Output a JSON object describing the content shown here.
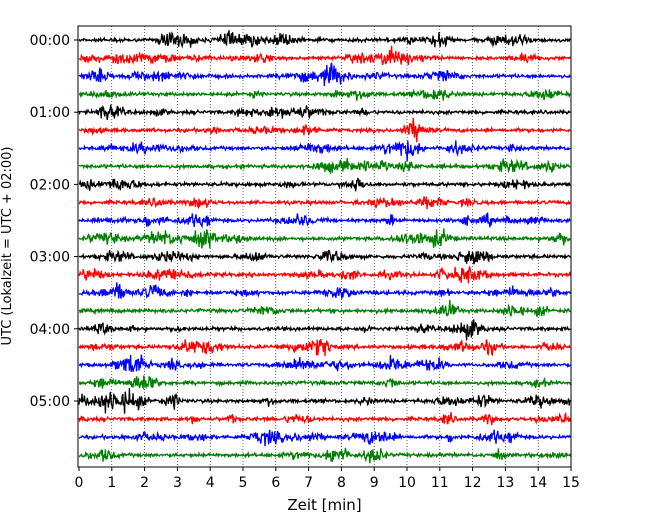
{
  "chart_data": {
    "type": "line",
    "title": "",
    "xlabel": "Zeit  [min]",
    "ylabel": "UTC (Lokalzeit = UTC + 02:00)",
    "xlim": [
      0,
      15
    ],
    "x_ticks": [
      "0",
      "1",
      "2",
      "3",
      "4",
      "5",
      "6",
      "7",
      "8",
      "9",
      "10",
      "11",
      "12",
      "13",
      "14",
      "15"
    ],
    "y_ticks": [
      "00:00",
      "01:00",
      "02:00",
      "03:00",
      "04:00",
      "05:00"
    ],
    "row_minutes": 15,
    "traces_per_hour": 4,
    "trace_count": 24,
    "trace_colors": [
      "#000000",
      "#ff0000",
      "#0000ff",
      "#008000"
    ],
    "vertical_grid": "dotted at each minute",
    "legend": "none"
  }
}
